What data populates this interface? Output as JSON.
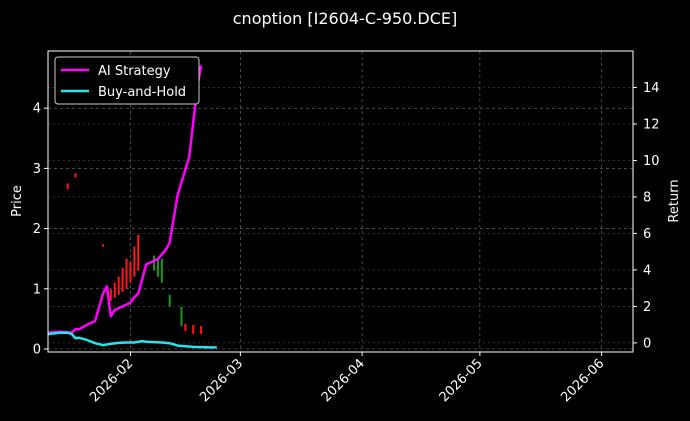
{
  "chart_data": {
    "type": "line",
    "title": "cnoption [I2604-C-950.DCE]",
    "ylabel": "Price",
    "y2label": "Return",
    "x_ticks": [
      "2026-02",
      "2026-03",
      "2026-04",
      "2026-05",
      "2026-06"
    ],
    "xlim": [
      "2026-01-11",
      "2026-06-09"
    ],
    "y_ticks": [
      "0",
      "1",
      "2",
      "3",
      "4"
    ],
    "ylim": [
      -0.05,
      4.95
    ],
    "y2_ticks": [
      "0",
      "2",
      "4",
      "6",
      "8",
      "10",
      "12",
      "14"
    ],
    "y2lim": [
      -0.5,
      16.0
    ],
    "grid": true,
    "legend_position": "top-left",
    "colors": {
      "ai": "#ff00ff",
      "bh": "#22e5ee",
      "up": "#ff1a1a",
      "down": "#1a9a1a",
      "axes": "#ffffff",
      "grid": "#777777"
    },
    "series": [
      {
        "name": "AI Strategy",
        "axis": "right",
        "points": [
          [
            "2026-01-11",
            0.55
          ],
          [
            "2026-01-13",
            0.6
          ],
          [
            "2026-01-15",
            0.6
          ],
          [
            "2026-01-17",
            0.55
          ],
          [
            "2026-01-18",
            0.75
          ],
          [
            "2026-01-19",
            0.75
          ],
          [
            "2026-01-21",
            1.0
          ],
          [
            "2026-01-23",
            1.2
          ],
          [
            "2026-01-25",
            2.7
          ],
          [
            "2026-01-26",
            3.1
          ],
          [
            "2026-01-27",
            1.45
          ],
          [
            "2026-01-28",
            1.8
          ],
          [
            "2026-01-30",
            2.0
          ],
          [
            "2026-02-01",
            2.2
          ],
          [
            "2026-02-02",
            2.5
          ],
          [
            "2026-02-03",
            2.7
          ],
          [
            "2026-02-05",
            4.3
          ],
          [
            "2026-02-08",
            4.6
          ],
          [
            "2026-02-10",
            5.1
          ],
          [
            "2026-02-11",
            5.5
          ],
          [
            "2026-02-13",
            8.1
          ],
          [
            "2026-02-16",
            10.2
          ],
          [
            "2026-02-18",
            14.0
          ],
          [
            "2026-02-19",
            15.2
          ]
        ]
      },
      {
        "name": "Buy-and-Hold",
        "axis": "right",
        "points": [
          [
            "2026-01-11",
            0.48
          ],
          [
            "2026-01-14",
            0.55
          ],
          [
            "2026-01-16",
            0.55
          ],
          [
            "2026-01-17",
            0.5
          ],
          [
            "2026-01-18",
            0.25
          ],
          [
            "2026-01-19",
            0.28
          ],
          [
            "2026-01-21",
            0.15
          ],
          [
            "2026-01-23",
            -0.02
          ],
          [
            "2026-01-25",
            -0.12
          ],
          [
            "2026-01-27",
            -0.05
          ],
          [
            "2026-01-29",
            0.0
          ],
          [
            "2026-01-31",
            0.02
          ],
          [
            "2026-02-02",
            0.02
          ],
          [
            "2026-02-04",
            0.1
          ],
          [
            "2026-02-05",
            0.06
          ],
          [
            "2026-02-07",
            0.04
          ],
          [
            "2026-02-09",
            0.02
          ],
          [
            "2026-02-11",
            -0.02
          ],
          [
            "2026-02-13",
            -0.15
          ],
          [
            "2026-02-15",
            -0.18
          ],
          [
            "2026-02-17",
            -0.22
          ],
          [
            "2026-02-21",
            -0.25
          ],
          [
            "2026-02-23",
            -0.25
          ]
        ]
      }
    ],
    "candles": [
      {
        "date": "2026-01-16",
        "low": 2.65,
        "high": 2.75,
        "dir": "up"
      },
      {
        "date": "2026-01-18",
        "low": 2.85,
        "high": 2.92,
        "dir": "up"
      },
      {
        "date": "2026-01-25",
        "low": 1.7,
        "high": 1.74,
        "dir": "up"
      },
      {
        "date": "2026-01-27",
        "low": 0.8,
        "high": 1.0,
        "dir": "up"
      },
      {
        "date": "2026-01-28",
        "low": 0.85,
        "high": 1.1,
        "dir": "up"
      },
      {
        "date": "2026-01-29",
        "low": 0.9,
        "high": 1.2,
        "dir": "up"
      },
      {
        "date": "2026-01-30",
        "low": 0.95,
        "high": 1.35,
        "dir": "up"
      },
      {
        "date": "2026-01-31",
        "low": 1.0,
        "high": 1.5,
        "dir": "up"
      },
      {
        "date": "2026-02-01",
        "low": 1.1,
        "high": 1.45,
        "dir": "up"
      },
      {
        "date": "2026-02-02",
        "low": 1.2,
        "high": 1.7,
        "dir": "up"
      },
      {
        "date": "2026-02-03",
        "low": 1.3,
        "high": 1.9,
        "dir": "up"
      },
      {
        "date": "2026-02-07",
        "low": 1.3,
        "high": 1.55,
        "dir": "down"
      },
      {
        "date": "2026-02-08",
        "low": 1.2,
        "high": 1.5,
        "dir": "down"
      },
      {
        "date": "2026-02-09",
        "low": 1.1,
        "high": 1.5,
        "dir": "down"
      },
      {
        "date": "2026-02-11",
        "low": 0.7,
        "high": 0.9,
        "dir": "down"
      },
      {
        "date": "2026-02-14",
        "low": 0.38,
        "high": 0.7,
        "dir": "down"
      },
      {
        "date": "2026-02-15",
        "low": 0.3,
        "high": 0.42,
        "dir": "up"
      },
      {
        "date": "2026-02-17",
        "low": 0.25,
        "high": 0.4,
        "dir": "up"
      },
      {
        "date": "2026-02-19",
        "low": 0.25,
        "high": 0.38,
        "dir": "up"
      }
    ]
  }
}
